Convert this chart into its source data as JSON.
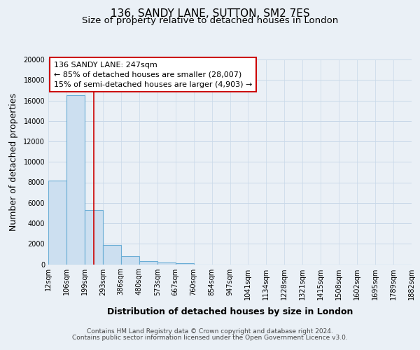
{
  "title": "136, SANDY LANE, SUTTON, SM2 7ES",
  "subtitle": "Size of property relative to detached houses in London",
  "xlabel": "Distribution of detached houses by size in London",
  "ylabel": "Number of detached properties",
  "bar_values": [
    8200,
    16500,
    5300,
    1850,
    780,
    280,
    200,
    120,
    0,
    0,
    0,
    0,
    0,
    0,
    0,
    0,
    0,
    0,
    0,
    0
  ],
  "ylim": [
    0,
    20000
  ],
  "yticks": [
    0,
    2000,
    4000,
    6000,
    8000,
    10000,
    12000,
    14000,
    16000,
    18000,
    20000
  ],
  "bar_color": "#ccdff0",
  "bar_edge_color": "#6aadd5",
  "vline_color": "#cc0000",
  "annotation_title": "136 SANDY LANE: 247sqm",
  "annotation_line1": "← 85% of detached houses are smaller (28,007)",
  "annotation_line2": "15% of semi-detached houses are larger (4,903) →",
  "annotation_box_color": "#ffffff",
  "annotation_box_edgecolor": "#cc0000",
  "footer_line1": "Contains HM Land Registry data © Crown copyright and database right 2024.",
  "footer_line2": "Contains public sector information licensed under the Open Government Licence v3.0.",
  "background_color": "#eaf0f6",
  "plot_bg_color": "#eaf0f6",
  "grid_color": "#c8d8e8",
  "title_fontsize": 11,
  "subtitle_fontsize": 9.5,
  "axis_label_fontsize": 9,
  "tick_fontsize": 7,
  "annotation_fontsize": 8,
  "footer_fontsize": 6.5,
  "x_tick_labels": [
    "12sqm",
    "106sqm",
    "199sqm",
    "293sqm",
    "386sqm",
    "480sqm",
    "573sqm",
    "667sqm",
    "760sqm",
    "854sqm",
    "947sqm",
    "1041sqm",
    "1134sqm",
    "1228sqm",
    "1321sqm",
    "1415sqm",
    "1508sqm",
    "1602sqm",
    "1695sqm",
    "1789sqm",
    "1882sqm"
  ]
}
